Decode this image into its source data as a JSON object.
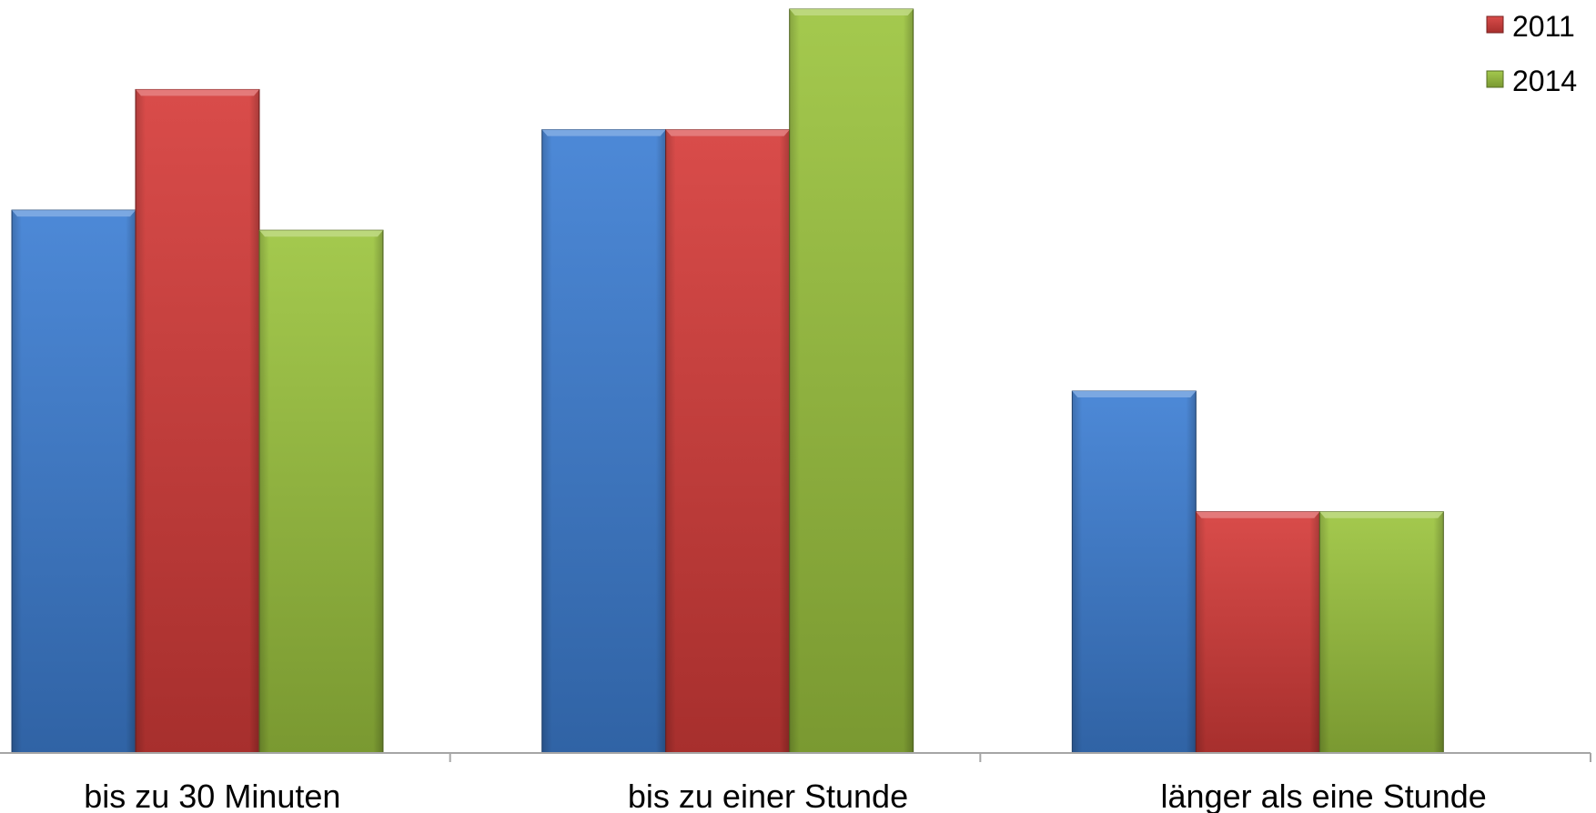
{
  "chart_data": {
    "type": "bar",
    "title": "",
    "xlabel": "",
    "ylabel": "",
    "categories": [
      "bis zu 30 Minuten",
      "bis zu einer Stunde",
      "länger als eine Stunde"
    ],
    "series": [
      {
        "color": "#3d7fd4",
        "values": [
          27,
          31,
          18
        ]
      },
      {
        "name": "2011",
        "color": "#d63c3a",
        "values": [
          33,
          31,
          12
        ]
      },
      {
        "name": "2014",
        "color": "#9cc43f",
        "values": [
          26,
          37,
          12
        ]
      }
    ],
    "ylim": [
      0,
      37
    ],
    "grid": false,
    "legend": "top-right"
  }
}
